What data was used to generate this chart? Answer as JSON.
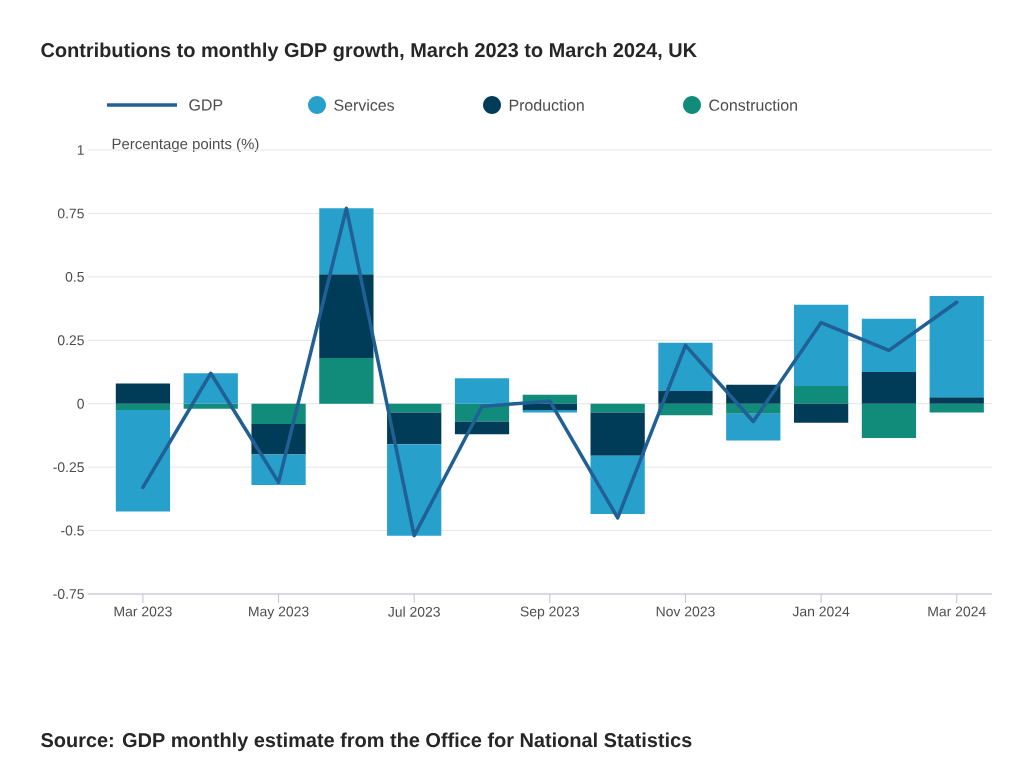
{
  "chart_data": {
    "type": "bar",
    "title": "Contributions to monthly GDP growth, March 2023 to March 2024, UK",
    "ylabel": "Percentage points (%)",
    "annotations": [
      "Source: GDP monthly estimate from the Office for National Statistics"
    ],
    "categories": [
      "Mar 2023",
      null,
      "May 2023",
      null,
      "Jul 2023",
      null,
      "Sep 2023",
      null,
      "Nov 2023",
      null,
      "Jan 2024",
      null,
      "Mar 2024"
    ],
    "stacked": true,
    "series": [
      {
        "name": "Construction",
        "color": "#118c7b",
        "values": [
          -0.025,
          -0.02,
          -0.08,
          0.18,
          -0.035,
          -0.07,
          0.035,
          -0.035,
          -0.045,
          -0.04,
          0.07,
          -0.135,
          -0.035
        ]
      },
      {
        "name": "Production",
        "color": "#003c57",
        "values": [
          0.08,
          0.0,
          -0.12,
          0.33,
          -0.125,
          -0.05,
          -0.025,
          -0.17,
          0.05,
          0.075,
          -0.075,
          0.125,
          0.025
        ]
      },
      {
        "name": "Services",
        "color": "#27a0cc",
        "values": [
          -0.4,
          0.12,
          -0.12,
          0.26,
          -0.36,
          0.1,
          -0.01,
          -0.23,
          0.19,
          -0.105,
          0.32,
          0.21,
          0.4
        ]
      },
      {
        "name": "GDP",
        "type": "line",
        "color": "#206095",
        "values": [
          -0.33,
          0.12,
          -0.31,
          0.77,
          -0.52,
          -0.01,
          0.01,
          -0.45,
          0.23,
          -0.07,
          0.32,
          0.21,
          0.4
        ],
        "line_style": "solid",
        "marker": "none"
      }
    ],
    "ylim": [
      -0.75,
      1
    ],
    "yticks": [
      -0.75,
      -0.5,
      -0.25,
      0,
      0.25,
      0.5,
      0.75,
      1
    ],
    "grid": "y",
    "legend": "top"
  }
}
